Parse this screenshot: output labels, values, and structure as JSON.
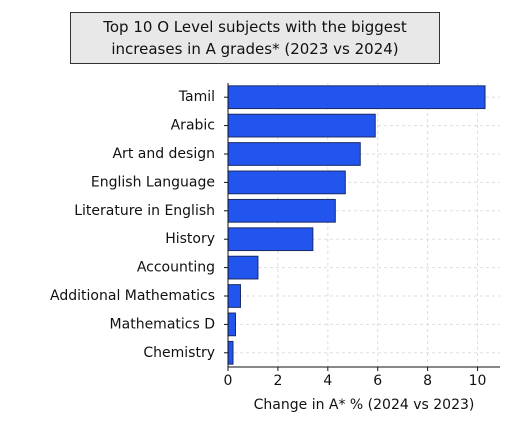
{
  "chart_data": {
    "type": "barh",
    "title": "Top 10 O Level subjects with the biggest\nincreases in A grades* (2023 vs 2024)",
    "x_label": "Change in A* % (2024 vs 2023)",
    "categories": [
      "Tamil",
      "Arabic",
      "Art and design",
      "English Language",
      "Literature in English",
      "History",
      "Accounting",
      "Additional Mathematics",
      "Mathematics D",
      "Chemistry"
    ],
    "values": [
      10.3,
      5.9,
      5.3,
      4.7,
      4.3,
      3.4,
      1.2,
      0.5,
      0.3,
      0.2
    ],
    "color": "#2255ee",
    "xlim": [
      0,
      10.9
    ],
    "xticks": [
      0,
      2,
      4,
      6,
      8,
      10
    ],
    "grid": true
  }
}
